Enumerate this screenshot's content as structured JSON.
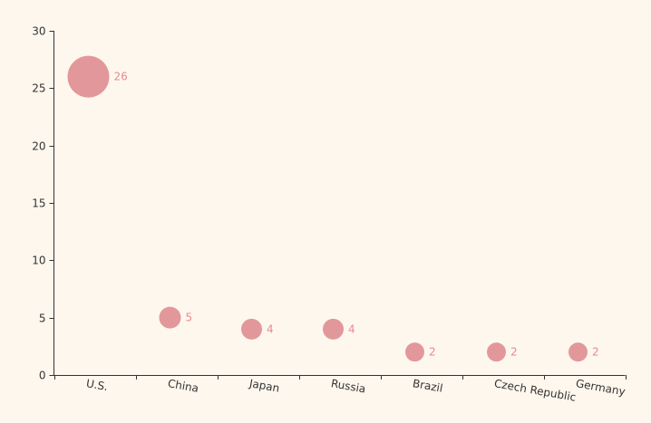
{
  "chart_data": {
    "type": "scatter",
    "title": "",
    "xlabel": "",
    "ylabel": "",
    "categories": [
      "U.S.",
      "China",
      "Japan",
      "Russia",
      "Brazil",
      "Czech Republic",
      "Germany"
    ],
    "series": [
      {
        "name": "",
        "values": [
          26,
          5,
          4,
          4,
          2,
          2,
          2
        ]
      }
    ],
    "ylim": [
      0,
      30
    ],
    "yticks": [
      0,
      5,
      10,
      15,
      20,
      25,
      30
    ],
    "grid": false,
    "bubble_size_encodes_value": true,
    "data_labels_visible": true,
    "colors": {
      "background": "#fef7ee",
      "bubble": "#e09295",
      "label": "#e78a8f",
      "axis": "#333333"
    }
  }
}
